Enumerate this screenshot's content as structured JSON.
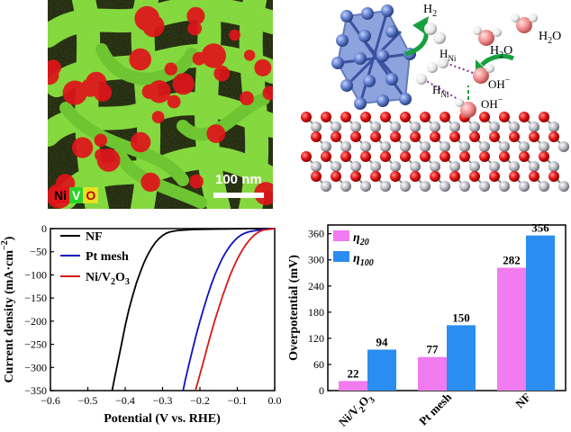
{
  "eds_map": {
    "elements": [
      {
        "symbol": "Ni",
        "color": "#e0141a",
        "text_color": "#000000"
      },
      {
        "symbol": "V",
        "color": "#2bd42b",
        "text_color": "#ffffff"
      },
      {
        "symbol": "O",
        "color": "#e8e020",
        "text_color": "#c00000"
      }
    ],
    "scale_text": "100 nm"
  },
  "mechanism": {
    "h2": "H",
    "h2_sub": "2",
    "h2o_a": "H",
    "h2o_a_sub": "2",
    "h2o_a_tail": "O",
    "h2o_b": "H",
    "h2o_b_sub": "2",
    "h2o_b_tail": "O",
    "h_ni": "H",
    "h_ni_sub": "Ni",
    "oh": "OH",
    "oh_sup": "−"
  },
  "chart_data": [
    {
      "type": "line",
      "xlabel": "Potential (V vs. RHE)",
      "ylabel": "Current density (mA·cm",
      "ylabel_sup": "−2",
      "ylabel_tail": ")",
      "xlim": [
        -0.6,
        0.0
      ],
      "ylim": [
        -350,
        0
      ],
      "xticks": [
        "−0.6",
        "−0.5",
        "−0.4",
        "−0.3",
        "−0.2",
        "−0.1",
        "0.0"
      ],
      "yticks": [
        "0",
        "−50",
        "−100",
        "−150",
        "−200",
        "−250",
        "−300",
        "−350"
      ],
      "legend": [
        {
          "label": "NF",
          "color": "#000000"
        },
        {
          "label": "Pt mesh",
          "color": "#1010c0"
        },
        {
          "label": "Ni/V",
          "label_sub": "2",
          "label_tail": "O",
          "label_sub2": "3",
          "color": "#d81818"
        }
      ],
      "series": [
        {
          "name": "NF",
          "color": "#000000",
          "points": [
            [
              -0.435,
              -350
            ],
            [
              -0.43,
              -330
            ],
            [
              -0.42,
              -290
            ],
            [
              -0.41,
              -250
            ],
            [
              -0.4,
              -210
            ],
            [
              -0.39,
              -175
            ],
            [
              -0.38,
              -145
            ],
            [
              -0.37,
              -118
            ],
            [
              -0.36,
              -95
            ],
            [
              -0.35,
              -74
            ],
            [
              -0.34,
              -57
            ],
            [
              -0.33,
              -43
            ],
            [
              -0.32,
              -31
            ],
            [
              -0.31,
              -22
            ],
            [
              -0.3,
              -15
            ],
            [
              -0.29,
              -10
            ],
            [
              -0.28,
              -7
            ],
            [
              -0.26,
              -4
            ],
            [
              -0.22,
              -2
            ],
            [
              -0.15,
              -1
            ],
            [
              -0.05,
              0
            ],
            [
              0.0,
              0
            ]
          ]
        },
        {
          "name": "Pt mesh",
          "color": "#1010c0",
          "points": [
            [
              -0.245,
              -350
            ],
            [
              -0.24,
              -330
            ],
            [
              -0.23,
              -295
            ],
            [
              -0.22,
              -262
            ],
            [
              -0.21,
              -230
            ],
            [
              -0.2,
              -200
            ],
            [
              -0.19,
              -172
            ],
            [
              -0.18,
              -146
            ],
            [
              -0.17,
              -122
            ],
            [
              -0.16,
              -100
            ],
            [
              -0.15,
              -81
            ],
            [
              -0.14,
              -64
            ],
            [
              -0.13,
              -50
            ],
            [
              -0.12,
              -38
            ],
            [
              -0.11,
              -28
            ],
            [
              -0.1,
              -20
            ],
            [
              -0.09,
              -14
            ],
            [
              -0.08,
              -10
            ],
            [
              -0.07,
              -7
            ],
            [
              -0.05,
              -4
            ],
            [
              -0.03,
              -2
            ],
            [
              0.0,
              0
            ]
          ]
        },
        {
          "name": "Ni/V2O3",
          "color": "#d81818",
          "points": [
            [
              -0.212,
              -350
            ],
            [
              -0.2,
              -315
            ],
            [
              -0.19,
              -285
            ],
            [
              -0.18,
              -255
            ],
            [
              -0.17,
              -226
            ],
            [
              -0.16,
              -198
            ],
            [
              -0.15,
              -172
            ],
            [
              -0.14,
              -147
            ],
            [
              -0.13,
              -124
            ],
            [
              -0.12,
              -102
            ],
            [
              -0.11,
              -83
            ],
            [
              -0.1,
              -66
            ],
            [
              -0.09,
              -51
            ],
            [
              -0.08,
              -38
            ],
            [
              -0.07,
              -27
            ],
            [
              -0.06,
              -18
            ],
            [
              -0.05,
              -11
            ],
            [
              -0.04,
              -6
            ],
            [
              -0.03,
              -3
            ],
            [
              -0.01,
              -1
            ],
            [
              0.0,
              0
            ]
          ]
        }
      ]
    },
    {
      "type": "bar",
      "ylabel": "Overpotential (mV)",
      "ylim": [
        0,
        380
      ],
      "yticks": [
        "0",
        "60",
        "120",
        "180",
        "240",
        "300",
        "360"
      ],
      "categories": [
        "Ni/V2O3",
        "Pt mesh",
        "NF"
      ],
      "category_labels": [
        {
          "main": "Ni/V",
          "sub": "2",
          "tail": "O",
          "sub2": "3"
        },
        {
          "main": "Pt mesh",
          "sub": "",
          "tail": "",
          "sub2": ""
        },
        {
          "main": "NF",
          "sub": "",
          "tail": "",
          "sub2": ""
        }
      ],
      "series": [
        {
          "name": "η",
          "name_sub": "20",
          "color": "#f07cf0",
          "values": [
            22,
            77,
            282
          ],
          "labels": [
            "22",
            "77",
            "282"
          ]
        },
        {
          "name": "η",
          "name_sub": "100",
          "color": "#2a8ef0",
          "values": [
            94,
            150,
            356
          ],
          "labels": [
            "94",
            "150",
            "356"
          ]
        }
      ],
      "legend_position": "top-left"
    }
  ]
}
